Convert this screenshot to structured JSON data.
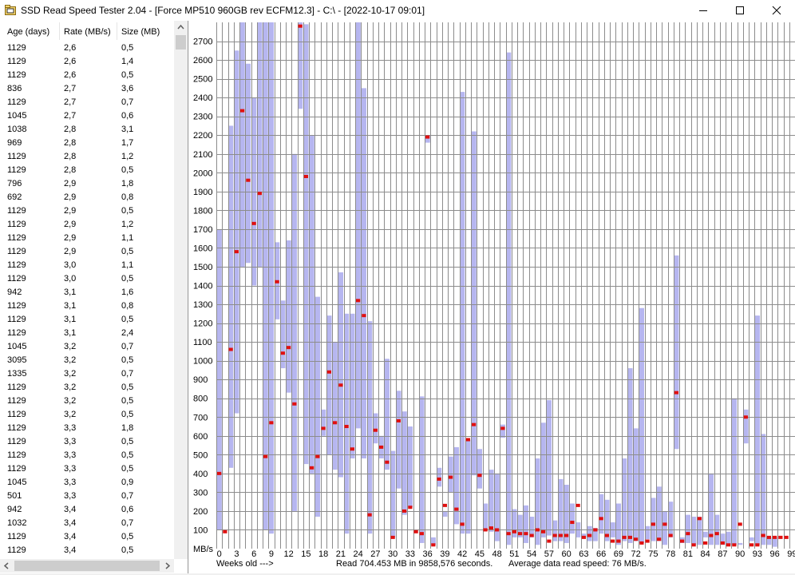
{
  "window": {
    "title": "SSD Read Speed Tester 2.04 - [Force MP510 960GB rev ECFM12.3] - C:\\ - [2022-10-17 09:01]"
  },
  "colors": {
    "range_bar": "#b6b6f0",
    "mean_marker": "#e01010",
    "grid": "#8c8c8c"
  },
  "icons": [
    "folder-app-icon",
    "minimize-icon",
    "maximize-icon",
    "close-icon",
    "scroll-up-arrow-icon",
    "scroll-left-arrow-icon",
    "scroll-right-arrow-icon"
  ],
  "list": {
    "headers": [
      "Age (days)",
      "Rate (MB/s)",
      "Size (MB)"
    ],
    "rows": [
      [
        "1129",
        "2,6",
        "0,5"
      ],
      [
        "1129",
        "2,6",
        "1,4"
      ],
      [
        "1129",
        "2,6",
        "0,5"
      ],
      [
        "836",
        "2,7",
        "3,6"
      ],
      [
        "1129",
        "2,7",
        "0,7"
      ],
      [
        "1045",
        "2,7",
        "0,6"
      ],
      [
        "1038",
        "2,8",
        "3,1"
      ],
      [
        "969",
        "2,8",
        "1,7"
      ],
      [
        "1129",
        "2,8",
        "1,2"
      ],
      [
        "1129",
        "2,8",
        "0,5"
      ],
      [
        "796",
        "2,9",
        "1,8"
      ],
      [
        "692",
        "2,9",
        "0,8"
      ],
      [
        "1129",
        "2,9",
        "0,5"
      ],
      [
        "1129",
        "2,9",
        "1,2"
      ],
      [
        "1129",
        "2,9",
        "1,1"
      ],
      [
        "1129",
        "2,9",
        "0,5"
      ],
      [
        "1129",
        "3,0",
        "1,1"
      ],
      [
        "1129",
        "3,0",
        "0,5"
      ],
      [
        "942",
        "3,1",
        "1,6"
      ],
      [
        "1129",
        "3,1",
        "0,8"
      ],
      [
        "1129",
        "3,1",
        "0,5"
      ],
      [
        "1129",
        "3,1",
        "2,4"
      ],
      [
        "1045",
        "3,2",
        "0,7"
      ],
      [
        "3095",
        "3,2",
        "0,5"
      ],
      [
        "1335",
        "3,2",
        "0,7"
      ],
      [
        "1129",
        "3,2",
        "0,5"
      ],
      [
        "1129",
        "3,2",
        "0,5"
      ],
      [
        "1129",
        "3,2",
        "0,5"
      ],
      [
        "1129",
        "3,3",
        "1,8"
      ],
      [
        "1129",
        "3,3",
        "0,5"
      ],
      [
        "1129",
        "3,3",
        "0,5"
      ],
      [
        "1129",
        "3,3",
        "0,5"
      ],
      [
        "1045",
        "3,3",
        "0,9"
      ],
      [
        "501",
        "3,3",
        "0,7"
      ],
      [
        "942",
        "3,4",
        "0,6"
      ],
      [
        "1032",
        "3,4",
        "0,7"
      ],
      [
        "1129",
        "3,4",
        "0,5"
      ],
      [
        "1129",
        "3,4",
        "0,5"
      ]
    ]
  },
  "footer": {
    "weeks_label": "Weeks old --->",
    "read_summary": "Read 704.453 MB in 9858,576 seconds.",
    "avg_summary": "Average data read speed: 76 MB/s."
  },
  "chart_data": {
    "type": "bar",
    "ylabel": "MB/s",
    "xlabel": "Weeks old --->",
    "ylim": [
      0,
      2800
    ],
    "grid": true,
    "ytick_labels": [
      "100",
      "200",
      "300",
      "400",
      "500",
      "600",
      "700",
      "800",
      "900",
      "1000",
      "1100",
      "1200",
      "1300",
      "1400",
      "1500",
      "1600",
      "1700",
      "1800",
      "1900",
      "2000",
      "2100",
      "2200",
      "2300",
      "2400",
      "2500",
      "2600",
      "2700"
    ],
    "xtick_labels": [
      "0",
      "3",
      "6",
      "9",
      "12",
      "15",
      "18",
      "21",
      "24",
      "27",
      "30",
      "33",
      "36",
      "39",
      "42",
      "45",
      "48",
      "51",
      "54",
      "57",
      "60",
      "63",
      "66",
      "69",
      "72",
      "75",
      "78",
      "81",
      "84",
      "87",
      "90",
      "93",
      "96",
      "99"
    ],
    "week_min": 0,
    "week_max": 99,
    "series": [
      {
        "kind": "range",
        "values": [
          [
            0,
            100,
            1700
          ],
          [
            1,
            null,
            null
          ],
          [
            2,
            430,
            2250
          ],
          [
            3,
            720,
            2650
          ],
          [
            4,
            1500,
            2800
          ],
          [
            5,
            1520,
            2580
          ],
          [
            6,
            1400,
            2400
          ],
          [
            7,
            1500,
            2800
          ],
          [
            8,
            100,
            2800
          ],
          [
            9,
            80,
            2800
          ],
          [
            10,
            1220,
            1630
          ],
          [
            11,
            960,
            1320
          ],
          [
            12,
            830,
            1640
          ],
          [
            13,
            200,
            2100
          ],
          [
            14,
            2340,
            2800
          ],
          [
            15,
            450,
            2790
          ],
          [
            16,
            400,
            2200
          ],
          [
            17,
            170,
            1340
          ],
          [
            18,
            600,
            740
          ],
          [
            19,
            500,
            1240
          ],
          [
            20,
            420,
            1100
          ],
          [
            21,
            380,
            1470
          ],
          [
            22,
            80,
            1250
          ],
          [
            23,
            480,
            1250
          ],
          [
            24,
            640,
            2800
          ],
          [
            25,
            480,
            2450
          ],
          [
            26,
            80,
            1210
          ],
          [
            27,
            560,
            720
          ],
          [
            28,
            480,
            600
          ],
          [
            29,
            420,
            1010
          ],
          [
            30,
            60,
            520
          ],
          [
            31,
            320,
            840
          ],
          [
            32,
            180,
            730
          ],
          [
            33,
            220,
            650
          ],
          [
            34,
            null,
            null
          ],
          [
            35,
            30,
            810
          ],
          [
            36,
            2160,
            2200
          ],
          [
            37,
            20,
            60
          ],
          [
            38,
            330,
            430
          ],
          [
            39,
            170,
            200
          ],
          [
            40,
            300,
            490
          ],
          [
            41,
            130,
            540
          ],
          [
            42,
            80,
            2430
          ],
          [
            43,
            80,
            580
          ],
          [
            44,
            390,
            2220
          ],
          [
            45,
            320,
            530
          ],
          [
            46,
            100,
            240
          ],
          [
            47,
            90,
            420
          ],
          [
            48,
            40,
            400
          ],
          [
            49,
            590,
            660
          ],
          [
            50,
            20,
            2640
          ],
          [
            51,
            60,
            210
          ],
          [
            52,
            60,
            180
          ],
          [
            53,
            30,
            230
          ],
          [
            54,
            60,
            170
          ],
          [
            55,
            20,
            480
          ],
          [
            56,
            60,
            670
          ],
          [
            57,
            70,
            790
          ],
          [
            58,
            40,
            150
          ],
          [
            59,
            40,
            370
          ],
          [
            60,
            30,
            340
          ],
          [
            61,
            80,
            240
          ],
          [
            62,
            60,
            140
          ],
          [
            63,
            60,
            80
          ],
          [
            64,
            40,
            120
          ],
          [
            65,
            40,
            110
          ],
          [
            66,
            80,
            290
          ],
          [
            67,
            40,
            260
          ],
          [
            68,
            60,
            140
          ],
          [
            69,
            20,
            240
          ],
          [
            70,
            40,
            480
          ],
          [
            71,
            30,
            960
          ],
          [
            72,
            40,
            640
          ],
          [
            73,
            30,
            1280
          ],
          [
            74,
            50,
            120
          ],
          [
            75,
            40,
            270
          ],
          [
            76,
            40,
            330
          ],
          [
            77,
            20,
            200
          ],
          [
            78,
            60,
            250
          ],
          [
            79,
            530,
            1560
          ],
          [
            80,
            30,
            60
          ],
          [
            81,
            30,
            180
          ],
          [
            82,
            20,
            170
          ],
          [
            83,
            20,
            170
          ],
          [
            84,
            60,
            90
          ],
          [
            85,
            20,
            400
          ],
          [
            86,
            20,
            180
          ],
          [
            87,
            20,
            80
          ],
          [
            88,
            20,
            90
          ],
          [
            89,
            20,
            800
          ],
          [
            90,
            20,
            30
          ],
          [
            91,
            560,
            740
          ],
          [
            92,
            40,
            60
          ],
          [
            93,
            20,
            1240
          ],
          [
            94,
            20,
            610
          ],
          [
            95,
            20,
            60
          ],
          [
            96,
            10,
            60
          ]
        ]
      },
      {
        "kind": "mean",
        "values": [
          [
            0,
            400
          ],
          [
            1,
            90
          ],
          [
            2,
            1060
          ],
          [
            3,
            1580
          ],
          [
            4,
            2330
          ],
          [
            5,
            1960
          ],
          [
            6,
            1730
          ],
          [
            7,
            1890
          ],
          [
            8,
            490
          ],
          [
            9,
            670
          ],
          [
            10,
            1420
          ],
          [
            11,
            1040
          ],
          [
            12,
            1070
          ],
          [
            13,
            770
          ],
          [
            14,
            2780
          ],
          [
            15,
            1980
          ],
          [
            16,
            430
          ],
          [
            17,
            490
          ],
          [
            18,
            640
          ],
          [
            19,
            940
          ],
          [
            20,
            670
          ],
          [
            21,
            870
          ],
          [
            22,
            650
          ],
          [
            23,
            530
          ],
          [
            24,
            1320
          ],
          [
            25,
            1240
          ],
          [
            26,
            180
          ],
          [
            27,
            630
          ],
          [
            28,
            540
          ],
          [
            29,
            460
          ],
          [
            30,
            60
          ],
          [
            31,
            680
          ],
          [
            32,
            200
          ],
          [
            33,
            220
          ],
          [
            34,
            90
          ],
          [
            35,
            80
          ],
          [
            36,
            2190
          ],
          [
            37,
            20
          ],
          [
            38,
            370
          ],
          [
            39,
            230
          ],
          [
            40,
            380
          ],
          [
            41,
            210
          ],
          [
            42,
            130
          ],
          [
            43,
            580
          ],
          [
            44,
            660
          ],
          [
            45,
            390
          ],
          [
            46,
            100
          ],
          [
            47,
            110
          ],
          [
            48,
            100
          ],
          [
            49,
            640
          ],
          [
            50,
            80
          ],
          [
            51,
            90
          ],
          [
            52,
            80
          ],
          [
            53,
            80
          ],
          [
            54,
            70
          ],
          [
            55,
            100
          ],
          [
            56,
            90
          ],
          [
            57,
            40
          ],
          [
            58,
            70
          ],
          [
            59,
            70
          ],
          [
            60,
            70
          ],
          [
            61,
            140
          ],
          [
            62,
            230
          ],
          [
            63,
            60
          ],
          [
            64,
            70
          ],
          [
            65,
            100
          ],
          [
            66,
            160
          ],
          [
            67,
            70
          ],
          [
            68,
            40
          ],
          [
            69,
            40
          ],
          [
            70,
            60
          ],
          [
            71,
            60
          ],
          [
            72,
            50
          ],
          [
            73,
            30
          ],
          [
            74,
            40
          ],
          [
            75,
            130
          ],
          [
            76,
            50
          ],
          [
            77,
            130
          ],
          [
            78,
            70
          ],
          [
            79,
            830
          ],
          [
            80,
            40
          ],
          [
            81,
            80
          ],
          [
            82,
            20
          ],
          [
            83,
            160
          ],
          [
            84,
            30
          ],
          [
            85,
            70
          ],
          [
            86,
            80
          ],
          [
            87,
            30
          ],
          [
            88,
            20
          ],
          [
            89,
            20
          ],
          [
            90,
            130
          ],
          [
            91,
            700
          ],
          [
            92,
            20
          ],
          [
            93,
            20
          ],
          [
            94,
            70
          ],
          [
            95,
            60
          ],
          [
            96,
            60
          ],
          [
            97,
            60
          ],
          [
            98,
            60
          ]
        ]
      }
    ]
  }
}
